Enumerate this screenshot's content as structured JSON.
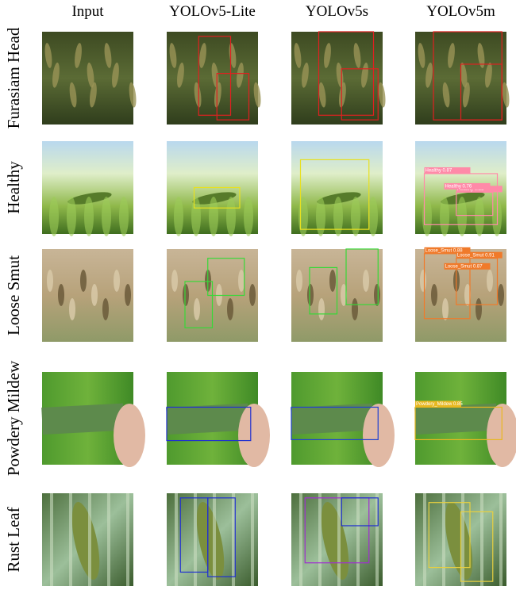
{
  "columns": [
    "Input",
    "YOLOv5-Lite",
    "YOLOv5s",
    "YOLOv5m"
  ],
  "rows": [
    {
      "label": "Furasiam Head"
    },
    {
      "label": "Healthy",
      "box_labels": [
        "Healthy 0.87",
        "Healthy 0.83",
        "Healthy 0.76"
      ]
    },
    {
      "label": "Loose Smut",
      "box_labels": [
        "Loose_Smut 0.88",
        "Loose_Smut 0.91",
        "Loose_Smut 0.87"
      ]
    },
    {
      "label": "Powdery Mildew",
      "box_labels": [
        "Powdery_Mildew 0.85"
      ]
    },
    {
      "label": "Rust Leaf"
    }
  ]
}
